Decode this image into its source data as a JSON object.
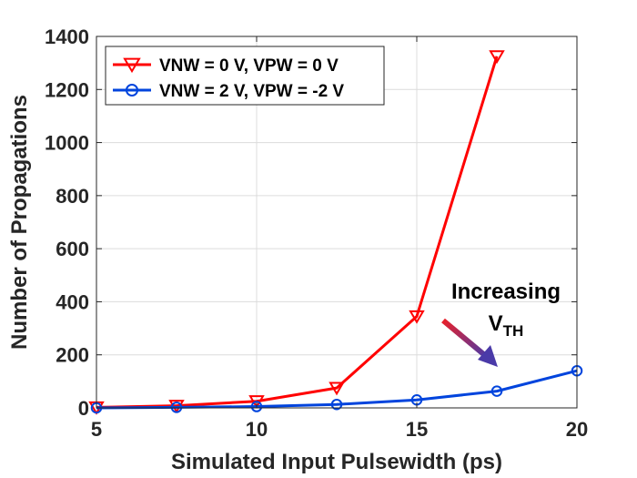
{
  "chart_data": {
    "type": "line",
    "title": "",
    "xlabel": "Simulated Input Pulsewidth (ps)",
    "ylabel": "Number of Propagations",
    "xlim": [
      5,
      20
    ],
    "ylim": [
      0,
      1400
    ],
    "xticks": [
      5,
      10,
      15,
      20
    ],
    "yticks": [
      0,
      200,
      400,
      600,
      800,
      1000,
      1200,
      1400
    ],
    "grid": true,
    "legend_position": "top-left",
    "series": [
      {
        "name": "VNW = 0 V, VPW = 0 V",
        "color": "#ff0000",
        "marker": "triangle-down",
        "x": [
          5,
          7.5,
          10,
          12.5,
          15,
          17.5
        ],
        "y": [
          2,
          8,
          25,
          75,
          345,
          1325
        ]
      },
      {
        "name": "VNW = 2 V, VPW = -2 V",
        "color": "#0044dd",
        "marker": "circle",
        "x": [
          5,
          7.5,
          10,
          12.5,
          15,
          17.5,
          20
        ],
        "y": [
          0,
          2,
          5,
          13,
          30,
          63,
          140
        ]
      }
    ],
    "annotation": {
      "line1": "Increasing",
      "line2_main": "V",
      "line2_sub": "TH"
    }
  }
}
